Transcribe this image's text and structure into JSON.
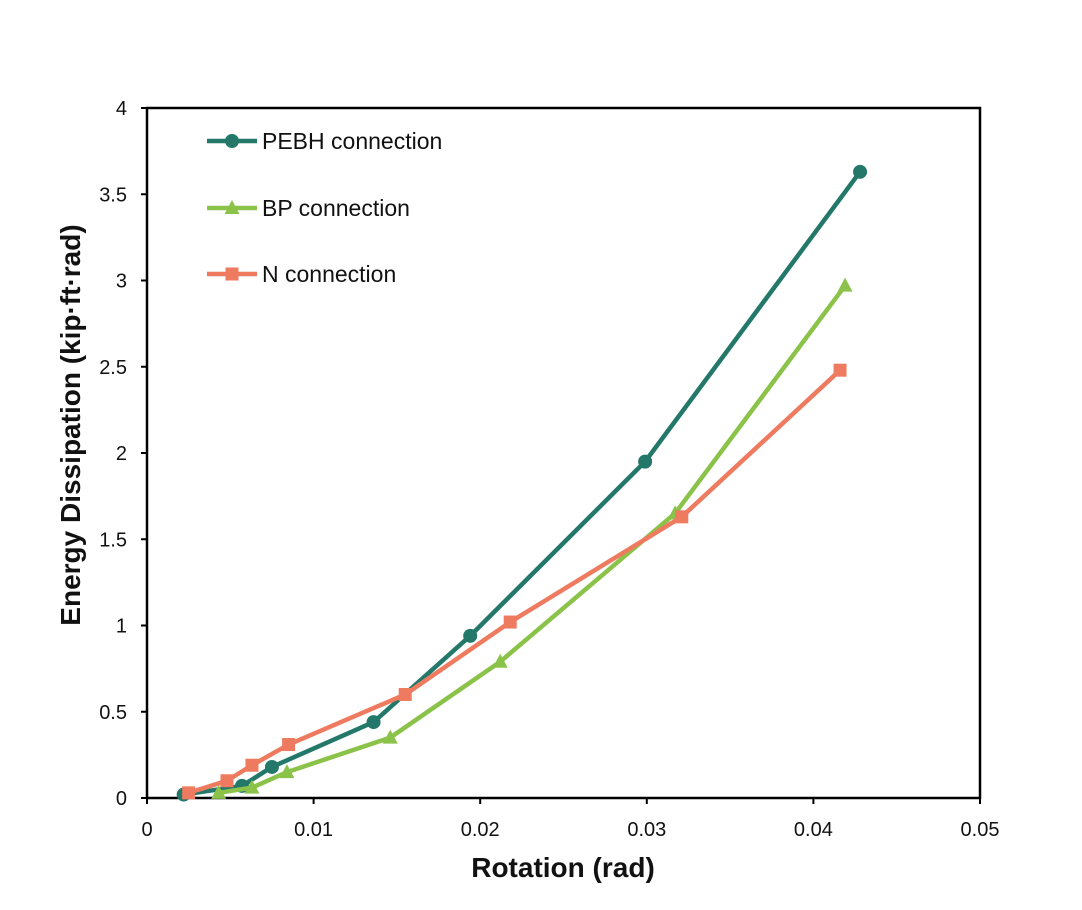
{
  "chart_data": {
    "type": "line",
    "title": "",
    "xlabel": "Rotation (rad)",
    "ylabel": "Energy Dissipation (kip·ft·rad)",
    "xlim": [
      0,
      0.05
    ],
    "ylim": [
      0,
      4
    ],
    "x_ticks": [
      0,
      0.01,
      0.02,
      0.03,
      0.04,
      0.05
    ],
    "x_tick_labels": [
      "0",
      "0.01",
      "0.02",
      "0.03",
      "0.04",
      "0.05"
    ],
    "y_ticks": [
      0,
      0.5,
      1,
      1.5,
      2,
      2.5,
      3,
      3.5,
      4
    ],
    "y_tick_labels": [
      "0",
      "0.5",
      "1",
      "1.5",
      "2",
      "2.5",
      "3",
      "3.5",
      "4"
    ],
    "grid": false,
    "legend_position": "top-left",
    "series": [
      {
        "name": "PEBH connection",
        "color": "#23786A",
        "marker": "circle",
        "x": [
          0.0022,
          0.0057,
          0.0075,
          0.0136,
          0.0194,
          0.0299,
          0.0428
        ],
        "y": [
          0.02,
          0.07,
          0.18,
          0.44,
          0.94,
          1.95,
          3.63
        ]
      },
      {
        "name": "BP connection",
        "color": "#8BC34A",
        "marker": "triangle",
        "x": [
          0.0043,
          0.0063,
          0.0084,
          0.0146,
          0.0212,
          0.0317,
          0.0419
        ],
        "y": [
          0.03,
          0.06,
          0.15,
          0.35,
          0.79,
          1.65,
          2.97
        ]
      },
      {
        "name": "N connection",
        "color": "#EE7B5F",
        "marker": "square",
        "x": [
          0.0025,
          0.0048,
          0.0063,
          0.0085,
          0.0155,
          0.0218,
          0.0321,
          0.0416
        ],
        "y": [
          0.03,
          0.1,
          0.19,
          0.31,
          0.6,
          1.02,
          1.63,
          2.48
        ]
      }
    ]
  }
}
